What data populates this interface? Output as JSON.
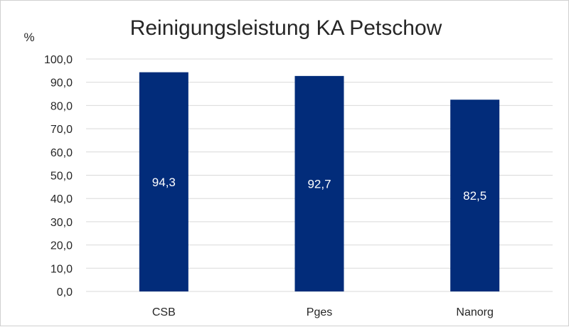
{
  "chart_data": {
    "type": "bar",
    "title": "Reinigungsleistung KA Petschow",
    "ylabel": "%",
    "xlabel": "",
    "categories": [
      "CSB",
      "Pges",
      "Nanorg"
    ],
    "values": [
      94.3,
      92.7,
      82.5
    ],
    "data_labels": [
      "94,3",
      "92,7",
      "82,5"
    ],
    "ylim": [
      0,
      100
    ],
    "y_ticks": [
      "0,0",
      "10,0",
      "20,0",
      "30,0",
      "40,0",
      "50,0",
      "60,0",
      "70,0",
      "80,0",
      "90,0",
      "100,0"
    ],
    "grid": true,
    "legend": "none",
    "colors": {
      "bar": "#022c7a",
      "grid": "#d9d9d9",
      "label": "#ffffff"
    }
  }
}
